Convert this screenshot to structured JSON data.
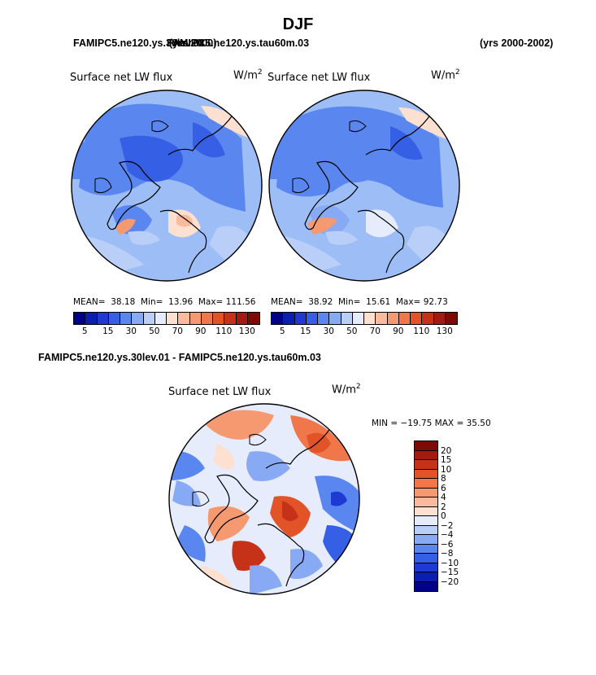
{
  "title": "DJF",
  "header": {
    "left_case_a": "FAMIPC5.ne120.ys.30lev.01",
    "left_case_b": "FAMIPC5.ne120.ys.tau60m.03",
    "left_years": "(yrs 2000)",
    "right_years": "(yrs 2000-2002)"
  },
  "panels": [
    {
      "title": "Surface net LW flux",
      "unit_base": "W/m",
      "unit_exp": "2",
      "stats": {
        "mean_label": "MEAN=",
        "mean": "38.18",
        "min_label": "Min=",
        "min": "13.96",
        "max_label": "Max=",
        "max": "111.56"
      }
    },
    {
      "title": "Surface net LW flux",
      "unit_base": "W/m",
      "unit_exp": "2",
      "stats": {
        "mean_label": "MEAN=",
        "mean": "38.92",
        "min_label": "Min=",
        "min": "15.61",
        "max_label": "Max=",
        "max": "92.73"
      }
    }
  ],
  "colorbar": {
    "labels": [
      "5",
      "15",
      "30",
      "50",
      "70",
      "90",
      "110",
      "130"
    ],
    "colors": [
      "#00008b",
      "#0a1fb2",
      "#1e3ad2",
      "#3560e6",
      "#5a86f0",
      "#88aaf4",
      "#b9cff8",
      "#e6ecfb",
      "#fde0cf",
      "#f9bb9b",
      "#f59a70",
      "#ef774a",
      "#e25328",
      "#c63218",
      "#a31a0e",
      "#7d0a05"
    ]
  },
  "diff": {
    "heading": "FAMIPC5.ne120.ys.30lev.01 - FAMIPC5.ne120.ys.tau60m.03",
    "title": "Surface net LW flux",
    "unit_base": "W/m",
    "unit_exp": "2",
    "minmax": "MIN = −19.75 MAX =  35.50",
    "colorbar_labels": [
      "20",
      "15",
      "10",
      "8",
      "6",
      "4",
      "2",
      "0",
      "−2",
      "−4",
      "−6",
      "−8",
      "−10",
      "−15",
      "−20"
    ],
    "colorbar_colors": [
      "#7d0a05",
      "#a31a0e",
      "#c63218",
      "#e25328",
      "#ef774a",
      "#f59a70",
      "#f9bb9b",
      "#fde0cf",
      "#e6ecfb",
      "#b9cff8",
      "#88aaf4",
      "#5a86f0",
      "#3560e6",
      "#1e3ad2",
      "#0a1fb2",
      "#00008b"
    ]
  }
}
